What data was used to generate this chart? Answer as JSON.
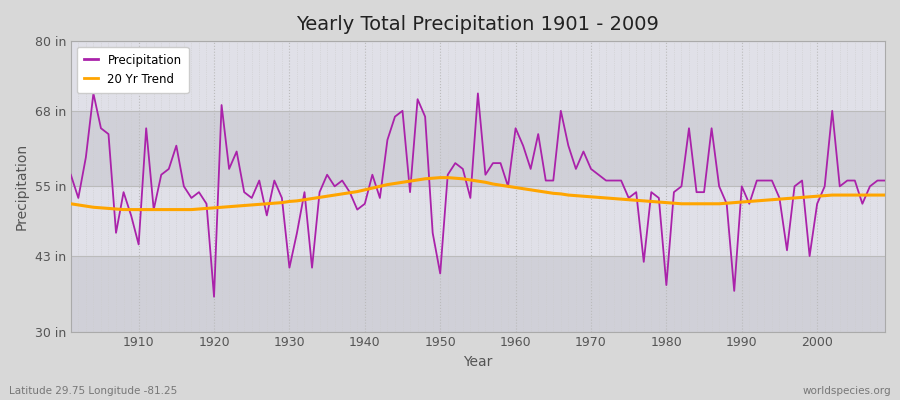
{
  "title": "Yearly Total Precipitation 1901 - 2009",
  "xlabel": "Year",
  "ylabel": "Precipitation",
  "bottom_left_label": "Latitude 29.75 Longitude -81.25",
  "bottom_right_label": "worldspecies.org",
  "ylim": [
    30,
    80
  ],
  "yticks": [
    30,
    43,
    55,
    68,
    80
  ],
  "ytick_labels": [
    "30 in",
    "43 in",
    "55 in",
    "68 in",
    "80 in"
  ],
  "xlim": [
    1901,
    2009
  ],
  "xticks": [
    1910,
    1920,
    1930,
    1940,
    1950,
    1960,
    1970,
    1980,
    1990,
    2000
  ],
  "precip_color": "#aa22aa",
  "trend_color": "#ffa500",
  "fig_bg_color": "#d8d8d8",
  "plot_bg_color": "#e0e0e8",
  "plot_bg_band_color": "#d0d0d8",
  "grid_color": "#cccccc",
  "years": [
    1901,
    1902,
    1903,
    1904,
    1905,
    1906,
    1907,
    1908,
    1909,
    1910,
    1911,
    1912,
    1913,
    1914,
    1915,
    1916,
    1917,
    1918,
    1919,
    1920,
    1921,
    1922,
    1923,
    1924,
    1925,
    1926,
    1927,
    1928,
    1929,
    1930,
    1931,
    1932,
    1933,
    1934,
    1935,
    1936,
    1937,
    1938,
    1939,
    1940,
    1941,
    1942,
    1943,
    1944,
    1945,
    1946,
    1947,
    1948,
    1949,
    1950,
    1951,
    1952,
    1953,
    1954,
    1955,
    1956,
    1957,
    1958,
    1959,
    1960,
    1961,
    1962,
    1963,
    1964,
    1965,
    1966,
    1967,
    1968,
    1969,
    1970,
    1971,
    1972,
    1973,
    1974,
    1975,
    1976,
    1977,
    1978,
    1979,
    1980,
    1981,
    1982,
    1983,
    1984,
    1985,
    1986,
    1987,
    1988,
    1989,
    1990,
    1991,
    1992,
    1993,
    1994,
    1995,
    1996,
    1997,
    1998,
    1999,
    2000,
    2001,
    2002,
    2003,
    2004,
    2005,
    2006,
    2007,
    2008,
    2009
  ],
  "precip": [
    57,
    53,
    60,
    71,
    65,
    64,
    47,
    54,
    50,
    45,
    65,
    51,
    57,
    58,
    62,
    55,
    53,
    54,
    52,
    36,
    69,
    58,
    61,
    54,
    53,
    56,
    50,
    56,
    53,
    41,
    47,
    54,
    41,
    54,
    57,
    55,
    56,
    54,
    51,
    52,
    57,
    53,
    63,
    67,
    68,
    54,
    70,
    67,
    47,
    40,
    57,
    59,
    58,
    53,
    71,
    57,
    59,
    59,
    55,
    65,
    62,
    58,
    64,
    56,
    56,
    68,
    62,
    58,
    61,
    58,
    57,
    56,
    56,
    56,
    53,
    54,
    42,
    54,
    53,
    38,
    54,
    55,
    65,
    54,
    54,
    65,
    55,
    52,
    37,
    55,
    52,
    56,
    56,
    56,
    53,
    44,
    55,
    56,
    43,
    52,
    55,
    68,
    55,
    56,
    56,
    52,
    55,
    56,
    56
  ],
  "trend": [
    52.0,
    51.8,
    51.6,
    51.4,
    51.3,
    51.2,
    51.1,
    51.0,
    51.0,
    51.0,
    51.0,
    51.0,
    51.0,
    51.0,
    51.0,
    51.0,
    51.0,
    51.1,
    51.2,
    51.3,
    51.4,
    51.5,
    51.6,
    51.7,
    51.8,
    51.9,
    52.0,
    52.1,
    52.2,
    52.4,
    52.5,
    52.7,
    52.9,
    53.1,
    53.3,
    53.5,
    53.7,
    53.9,
    54.1,
    54.4,
    54.7,
    55.0,
    55.3,
    55.5,
    55.7,
    55.9,
    56.1,
    56.3,
    56.4,
    56.5,
    56.5,
    56.4,
    56.3,
    56.1,
    55.9,
    55.7,
    55.4,
    55.2,
    55.0,
    54.8,
    54.6,
    54.4,
    54.2,
    54.0,
    53.8,
    53.7,
    53.5,
    53.4,
    53.3,
    53.2,
    53.1,
    53.0,
    52.9,
    52.8,
    52.7,
    52.6,
    52.5,
    52.4,
    52.3,
    52.2,
    52.1,
    52.0,
    52.0,
    52.0,
    52.0,
    52.0,
    52.0,
    52.1,
    52.2,
    52.3,
    52.4,
    52.5,
    52.6,
    52.7,
    52.8,
    52.9,
    53.0,
    53.1,
    53.2,
    53.3,
    53.4,
    53.5,
    53.5,
    53.5,
    53.5,
    53.5,
    53.5,
    53.5,
    53.5
  ]
}
